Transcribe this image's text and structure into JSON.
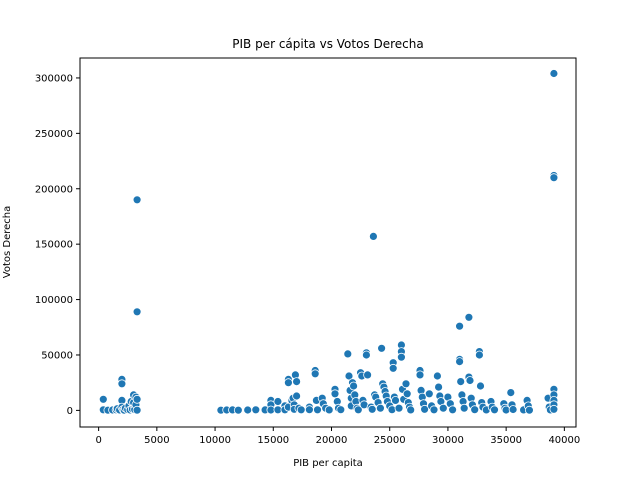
{
  "chart_data": {
    "type": "scatter",
    "title": "PIB per cápita vs Votos Derecha",
    "xlabel": "PIB per capita",
    "ylabel": "Votos Derecha",
    "xlim": [
      -1600,
      41000
    ],
    "ylim": [
      -15000,
      318000
    ],
    "x_ticks": [
      0,
      5000,
      10000,
      15000,
      20000,
      25000,
      30000,
      35000,
      40000
    ],
    "y_ticks": [
      0,
      50000,
      100000,
      150000,
      200000,
      250000,
      300000
    ],
    "x_tick_labels": [
      "0",
      "5000",
      "10000",
      "15000",
      "20000",
      "25000",
      "30000",
      "35000",
      "40000"
    ],
    "y_tick_labels": [
      "0",
      "50000",
      "100000",
      "150000",
      "200000",
      "250000",
      "300000"
    ],
    "grid": false,
    "legend": "none",
    "marker_color": "#1f77b4",
    "points": [
      [
        400,
        10000
      ],
      [
        400,
        500
      ],
      [
        800,
        200
      ],
      [
        1200,
        300
      ],
      [
        1500,
        500
      ],
      [
        1600,
        1500
      ],
      [
        1800,
        300
      ],
      [
        2000,
        28000
      ],
      [
        2000,
        24000
      ],
      [
        2000,
        9000
      ],
      [
        2000,
        3000
      ],
      [
        2100,
        800
      ],
      [
        2200,
        200
      ],
      [
        2300,
        2000
      ],
      [
        2500,
        600
      ],
      [
        2600,
        4000
      ],
      [
        2700,
        300
      ],
      [
        2800,
        8000
      ],
      [
        2900,
        1200
      ],
      [
        3000,
        14000
      ],
      [
        3000,
        7000
      ],
      [
        3100,
        2500
      ],
      [
        3100,
        600
      ],
      [
        3200,
        12000
      ],
      [
        3200,
        5000
      ],
      [
        3300,
        190000
      ],
      [
        3300,
        89000
      ],
      [
        3300,
        10000
      ],
      [
        3300,
        200
      ],
      [
        10500,
        200
      ],
      [
        11000,
        300
      ],
      [
        11500,
        400
      ],
      [
        12000,
        200
      ],
      [
        12800,
        300
      ],
      [
        13500,
        500
      ],
      [
        14300,
        400
      ],
      [
        14800,
        9000
      ],
      [
        14800,
        5000
      ],
      [
        14800,
        300
      ],
      [
        15400,
        8000
      ],
      [
        15400,
        500
      ],
      [
        16000,
        4000
      ],
      [
        16000,
        500
      ],
      [
        16300,
        28000
      ],
      [
        16300,
        25000
      ],
      [
        16300,
        3000
      ],
      [
        16600,
        9000
      ],
      [
        16700,
        11000
      ],
      [
        16800,
        5000
      ],
      [
        16800,
        1000
      ],
      [
        16900,
        32000
      ],
      [
        17000,
        26000
      ],
      [
        17000,
        13000
      ],
      [
        17200,
        2000
      ],
      [
        17400,
        500
      ],
      [
        18100,
        3000
      ],
      [
        18100,
        600
      ],
      [
        18600,
        36000
      ],
      [
        18600,
        33000
      ],
      [
        18700,
        9000
      ],
      [
        18800,
        500
      ],
      [
        19200,
        11000
      ],
      [
        19300,
        6000
      ],
      [
        19500,
        2000
      ],
      [
        19800,
        400
      ],
      [
        20300,
        19000
      ],
      [
        20300,
        15000
      ],
      [
        20500,
        8000
      ],
      [
        20600,
        2000
      ],
      [
        20800,
        600
      ],
      [
        21400,
        51000
      ],
      [
        21500,
        31000
      ],
      [
        21600,
        18000
      ],
      [
        21700,
        11000
      ],
      [
        21700,
        4000
      ],
      [
        21800,
        25000
      ],
      [
        21900,
        22000
      ],
      [
        22000,
        14000
      ],
      [
        22100,
        8000
      ],
      [
        22200,
        2000
      ],
      [
        22300,
        500
      ],
      [
        22500,
        34000
      ],
      [
        22600,
        31000
      ],
      [
        22700,
        9000
      ],
      [
        22800,
        5000
      ],
      [
        23000,
        52000
      ],
      [
        23000,
        50000
      ],
      [
        23100,
        32000
      ],
      [
        23400,
        3000
      ],
      [
        23500,
        1000
      ],
      [
        23600,
        157000
      ],
      [
        23700,
        14000
      ],
      [
        23800,
        12000
      ],
      [
        24000,
        7000
      ],
      [
        24200,
        2000
      ],
      [
        24300,
        56000
      ],
      [
        24400,
        24000
      ],
      [
        24500,
        21000
      ],
      [
        24600,
        17000
      ],
      [
        24700,
        13000
      ],
      [
        24800,
        8000
      ],
      [
        25000,
        4000
      ],
      [
        25200,
        600
      ],
      [
        25300,
        43000
      ],
      [
        25300,
        38000
      ],
      [
        25400,
        12000
      ],
      [
        25500,
        9000
      ],
      [
        25800,
        2000
      ],
      [
        26000,
        59000
      ],
      [
        26000,
        53000
      ],
      [
        26000,
        48000
      ],
      [
        26100,
        19000
      ],
      [
        26200,
        10000
      ],
      [
        26400,
        24000
      ],
      [
        26500,
        15000
      ],
      [
        26600,
        7000
      ],
      [
        26700,
        3000
      ],
      [
        26800,
        400
      ],
      [
        27600,
        36000
      ],
      [
        27600,
        32000
      ],
      [
        27700,
        18000
      ],
      [
        27800,
        12000
      ],
      [
        27900,
        6000
      ],
      [
        28000,
        1000
      ],
      [
        28400,
        15000
      ],
      [
        28600,
        4000
      ],
      [
        28800,
        500
      ],
      [
        29100,
        31000
      ],
      [
        29200,
        21000
      ],
      [
        29300,
        13000
      ],
      [
        29400,
        8000
      ],
      [
        29600,
        2000
      ],
      [
        30000,
        12000
      ],
      [
        30200,
        6000
      ],
      [
        30400,
        500
      ],
      [
        31000,
        46000
      ],
      [
        31000,
        44000
      ],
      [
        31000,
        76000
      ],
      [
        31100,
        26000
      ],
      [
        31200,
        14000
      ],
      [
        31300,
        8000
      ],
      [
        31400,
        2000
      ],
      [
        31800,
        84000
      ],
      [
        31800,
        30000
      ],
      [
        31900,
        27000
      ],
      [
        32000,
        11000
      ],
      [
        32100,
        5000
      ],
      [
        32300,
        600
      ],
      [
        32700,
        53000
      ],
      [
        32700,
        50000
      ],
      [
        32800,
        22000
      ],
      [
        32900,
        7000
      ],
      [
        33000,
        3000
      ],
      [
        33300,
        400
      ],
      [
        33700,
        8000
      ],
      [
        33800,
        3000
      ],
      [
        34000,
        500
      ],
      [
        34800,
        6000
      ],
      [
        34900,
        2000
      ],
      [
        35000,
        300
      ],
      [
        35400,
        16000
      ],
      [
        35500,
        5000
      ],
      [
        35600,
        800
      ],
      [
        36500,
        400
      ],
      [
        36800,
        9000
      ],
      [
        36900,
        4000
      ],
      [
        37000,
        200
      ],
      [
        38600,
        11000
      ],
      [
        38700,
        3000
      ],
      [
        38800,
        400
      ],
      [
        39100,
        304000
      ],
      [
        39100,
        212000
      ],
      [
        39100,
        210000
      ],
      [
        39100,
        19000
      ],
      [
        39100,
        14000
      ],
      [
        39100,
        9000
      ],
      [
        39100,
        5000
      ],
      [
        39100,
        1000
      ]
    ]
  }
}
